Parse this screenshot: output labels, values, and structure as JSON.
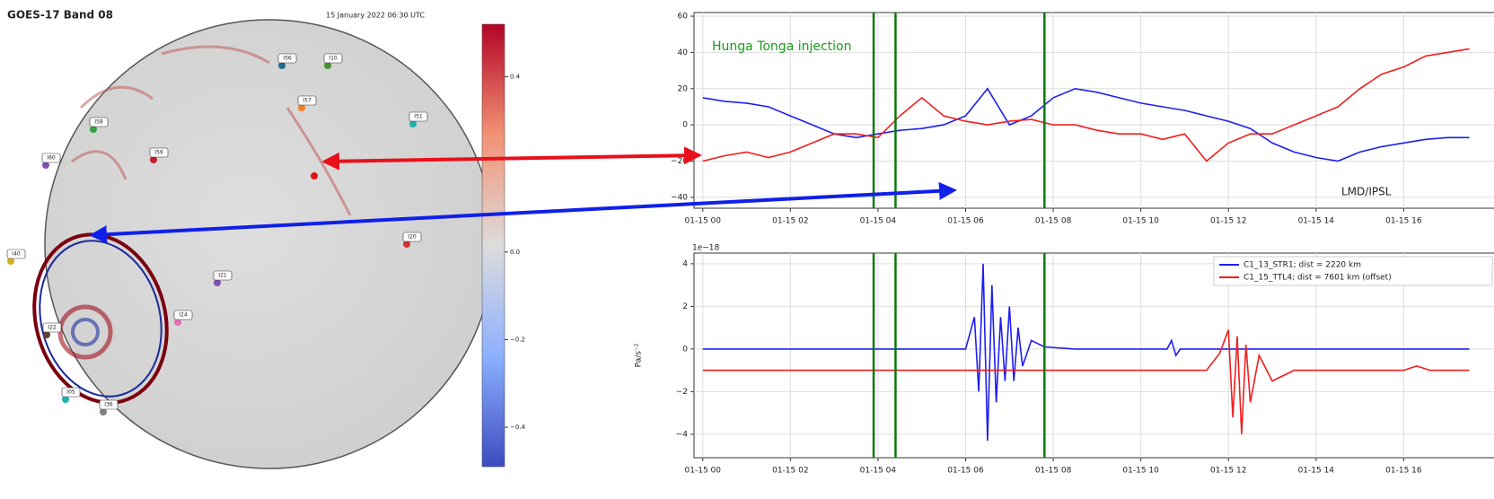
{
  "map": {
    "title": "GOES-17 Band 08",
    "timestamp": "15 January 2022 06:30 UTC",
    "stations": [
      "I56",
      "I10",
      "I57",
      "I51",
      "I58",
      "I59",
      "I60",
      "I40",
      "I20",
      "I21",
      "I24",
      "I22",
      "I05",
      "I36"
    ],
    "colorbar": {
      "lim": [
        -0.49,
        0.52
      ],
      "ticks": [
        0.4,
        {
          "value": 0,
          "label": "0.0"
        },
        {
          "value": -0.2,
          "label": "−0.2"
        },
        {
          "value": -0.4,
          "label": "−0.4"
        }
      ]
    }
  },
  "chart_data": [
    {
      "type": "line",
      "annotations": [
        "Hunga Tonga injection",
        "LMD/IPSL"
      ],
      "x": [
        0,
        0.5,
        1,
        1.5,
        2,
        2.5,
        3,
        3.5,
        4,
        4.5,
        5,
        5.5,
        6,
        6.5,
        7,
        7.5,
        8,
        8.5,
        9,
        9.5,
        10,
        10.5,
        11,
        11.5,
        12,
        12.5,
        13,
        13.5,
        14,
        14.5,
        15,
        15.5,
        16,
        16.5,
        17,
        17.5
      ],
      "series": [
        {
          "color": "#1f1ff0",
          "values": [
            15,
            13,
            12,
            10,
            5,
            0,
            -5,
            -7,
            -5,
            -3,
            -2,
            0,
            5,
            20,
            0,
            5,
            15,
            20,
            18,
            15,
            12,
            10,
            8,
            5,
            2,
            -2,
            -10,
            -15,
            -18,
            -20,
            -15,
            -12,
            -10,
            -8,
            -7,
            -7
          ]
        },
        {
          "color": "#f01f1f",
          "values": [
            -20,
            -17,
            -15,
            -18,
            -15,
            -10,
            -5,
            -5,
            -7,
            5,
            15,
            5,
            2,
            0,
            2,
            3,
            0,
            0,
            -3,
            -5,
            -5,
            -8,
            -5,
            -20,
            -10,
            -5,
            -5,
            0,
            5,
            10,
            20,
            28,
            32,
            38,
            40,
            42
          ]
        }
      ],
      "vlines": [
        3.9,
        4.4,
        7.8
      ],
      "vline_color": "#0a7a0a",
      "xlim": [
        -0.2,
        18.8
      ],
      "ylim": [
        -46,
        62
      ],
      "xticks": [
        {
          "value": 0,
          "label": "01-15 00"
        },
        {
          "value": 2,
          "label": "01-15 02"
        },
        {
          "value": 4,
          "label": "01-15 04"
        },
        {
          "value": 6,
          "label": "01-15 06"
        },
        {
          "value": 8,
          "label": "01-15 08"
        },
        {
          "value": 10,
          "label": "01-15 10"
        },
        {
          "value": 12,
          "label": "01-15 12"
        },
        {
          "value": 14,
          "label": "01-15 14"
        },
        {
          "value": 16,
          "label": "01-15 16"
        }
      ],
      "yticks": [
        {
          "value": -40,
          "label": "−40"
        },
        {
          "value": -20,
          "label": "−20"
        },
        0,
        20,
        40,
        60
      ],
      "grid": true
    },
    {
      "type": "line",
      "ylabel": "Pa/s⁻²",
      "offset_text": "1e−18",
      "series": [
        {
          "name": "C1_13_STR1; dist = 2220 km",
          "color": "#1f1ff0",
          "x": [
            0,
            6.0,
            6.2,
            6.3,
            6.4,
            6.5,
            6.6,
            6.7,
            6.8,
            6.9,
            7.0,
            7.1,
            7.2,
            7.3,
            7.5,
            7.8,
            8.5,
            10.6,
            10.7,
            10.8,
            10.9,
            17.5
          ],
          "values": [
            0,
            0,
            1.5,
            -2,
            4,
            -4.3,
            3,
            -2.5,
            1.5,
            -1.5,
            2,
            -1.5,
            1,
            -0.8,
            0.4,
            0.1,
            0,
            0,
            0.4,
            -0.3,
            0,
            0
          ]
        },
        {
          "name": "C1_15_TTL4; dist = 7601 km (offset)",
          "color": "#f01f1f",
          "x": [
            0,
            11.5,
            11.8,
            12.0,
            12.1,
            12.2,
            12.3,
            12.4,
            12.5,
            12.7,
            13.0,
            13.5,
            16.0,
            16.3,
            16.6,
            17.5
          ],
          "values": [
            -1,
            -1,
            -0.2,
            0.9,
            -3.2,
            0.6,
            -4,
            0.2,
            -2.5,
            -0.3,
            -1.5,
            -1,
            -1,
            -0.8,
            -1,
            -1
          ]
        }
      ],
      "vlines": [
        3.9,
        4.4,
        7.8
      ],
      "vline_color": "#0a7a0a",
      "xlim": [
        -0.2,
        18.8
      ],
      "ylim": [
        -5.1,
        4.5
      ],
      "xticks": [
        {
          "value": 0,
          "label": "01-15 00"
        },
        {
          "value": 2,
          "label": "01-15 02"
        },
        {
          "value": 4,
          "label": "01-15 04"
        },
        {
          "value": 6,
          "label": "01-15 06"
        },
        {
          "value": 8,
          "label": "01-15 08"
        },
        {
          "value": 10,
          "label": "01-15 10"
        },
        {
          "value": 12,
          "label": "01-15 12"
        },
        {
          "value": 14,
          "label": "01-15 14"
        },
        {
          "value": 16,
          "label": "01-15 16"
        }
      ],
      "yticks": [
        {
          "value": -4,
          "label": "−4"
        },
        {
          "value": -2,
          "label": "−2"
        },
        0,
        2,
        4
      ],
      "grid": true,
      "legend": "upper right"
    }
  ]
}
